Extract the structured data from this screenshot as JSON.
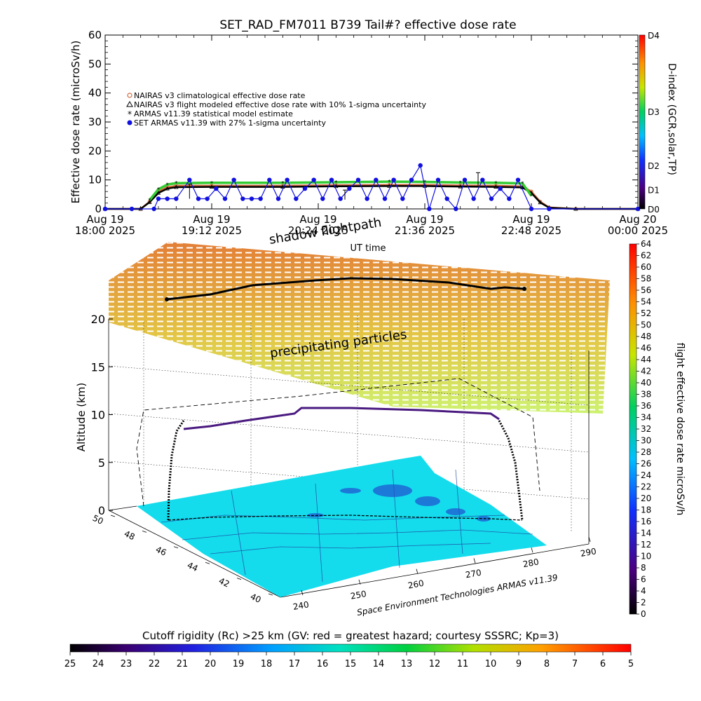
{
  "top_chart": {
    "title": "SET_RAD_FM7011   B739 Tail#? effective dose rate",
    "ylabel": "Effective dose rate (microSv/h)",
    "xlabel": "UT time",
    "legend": [
      {
        "label": "NAIRAS v3 climatological effective dose rate",
        "color": "#d2693c"
      },
      {
        "label": "NAIRAS v3 flight modeled effective dose rate with 10% 1-sigma uncertainty",
        "color": "#000000"
      },
      {
        "label": "ARMAS v11.39 statistical model estimate",
        "color": "#33cc33"
      },
      {
        "label": "SET ARMAS v11.39 with 27% 1-sigma uncertainty",
        "color": "#1010e0"
      }
    ],
    "right_colorbar": {
      "title": "D-index (GCR,solar,TP)",
      "labels": [
        {
          "text": "D4",
          "v": 1.0
        },
        {
          "text": "D3",
          "v": 0.56
        },
        {
          "text": "D2",
          "v": 0.25
        },
        {
          "text": "D1",
          "v": 0.11
        },
        {
          "text": "D0",
          "v": 0.0
        }
      ]
    }
  },
  "chart_data": [
    {
      "type": "scatter",
      "title": "SET_RAD_FM7011   B739 Tail#? effective dose rate",
      "xlabel": "UT time",
      "ylabel": "Effective dose rate (microSv/h)",
      "x_unit": "hours UT on Aug 19 2025",
      "xlim": [
        18.0,
        24.0
      ],
      "ylim": [
        0,
        60
      ],
      "x_ticks": [
        {
          "x": 18.0,
          "line1": "Aug 19",
          "line2": "18:00 2025"
        },
        {
          "x": 19.2,
          "line1": "Aug 19",
          "line2": "19:12 2025"
        },
        {
          "x": 20.4,
          "line1": "Aug 19",
          "line2": "20:24 2025"
        },
        {
          "x": 21.6,
          "line1": "Aug 19",
          "line2": "21:36 2025"
        },
        {
          "x": 22.8,
          "line1": "Aug 19",
          "line2": "22:48 2025"
        },
        {
          "x": 24.0,
          "line1": "Aug 20",
          "line2": "00:00 2025"
        }
      ],
      "y_ticks": [
        0,
        10,
        20,
        30,
        40,
        50,
        60
      ],
      "series": [
        {
          "name": "NAIRAS v3 climatological effective dose rate",
          "color": "#d2693c",
          "x": [
            18.0,
            18.4,
            18.5,
            18.6,
            18.7,
            18.8,
            19.2,
            20.0,
            20.6,
            21.2,
            21.6,
            22.0,
            22.4,
            22.7,
            22.8,
            22.9,
            23.0,
            23.3,
            24.0
          ],
          "y": [
            0,
            0,
            2.5,
            6.0,
            7.5,
            8.0,
            8.0,
            8.0,
            8.2,
            8.3,
            8.3,
            8.1,
            8.0,
            7.8,
            6.0,
            2.5,
            0.5,
            0,
            0
          ]
        },
        {
          "name": "NAIRAS v3 flight modeled effective dose rate with 10% 1-sigma uncertainty",
          "color": "#000000",
          "x": [
            18.0,
            18.4,
            18.5,
            18.6,
            18.7,
            18.8,
            19.2,
            20.0,
            20.6,
            21.2,
            21.6,
            22.0,
            22.4,
            22.7,
            22.8,
            22.9,
            23.0,
            23.3,
            24.0
          ],
          "y": [
            0,
            0,
            2.3,
            5.5,
            7.0,
            7.5,
            7.6,
            7.6,
            7.8,
            7.9,
            7.9,
            7.7,
            7.6,
            7.4,
            5.5,
            2.2,
            0.4,
            0,
            0
          ]
        },
        {
          "name": "ARMAS v11.39 statistical model estimate",
          "color": "#33cc33",
          "x": [
            18.5,
            18.6,
            18.7,
            18.8,
            19.2,
            20.0,
            20.6,
            21.2,
            21.6,
            22.0,
            22.4,
            22.7,
            22.8
          ],
          "y": [
            3.0,
            6.8,
            8.4,
            8.9,
            9.0,
            9.0,
            9.2,
            9.4,
            9.3,
            9.1,
            9.0,
            8.8,
            4.5
          ]
        },
        {
          "name": "SET ARMAS v11.39 with 27% 1-sigma uncertainty",
          "color": "#1010e0",
          "x": [
            18.0,
            18.3,
            18.55,
            18.6,
            18.7,
            18.8,
            18.95,
            19.05,
            19.15,
            19.25,
            19.35,
            19.45,
            19.55,
            19.65,
            19.75,
            19.85,
            19.95,
            20.05,
            20.15,
            20.25,
            20.35,
            20.45,
            20.55,
            20.65,
            20.75,
            20.85,
            20.95,
            21.05,
            21.15,
            21.25,
            21.35,
            21.45,
            21.55,
            21.65,
            21.75,
            21.85,
            21.95,
            22.05,
            22.15,
            22.25,
            22.35,
            22.45,
            22.55,
            22.65,
            22.8,
            23.0,
            24.0
          ],
          "y": [
            0,
            0,
            0,
            3.5,
            3.5,
            3.5,
            10,
            3.5,
            3.5,
            7,
            3.5,
            10,
            3.5,
            3.5,
            3.5,
            10,
            3.5,
            10,
            3.5,
            7,
            10,
            3.5,
            10,
            3.5,
            7,
            10,
            3.5,
            10,
            3.5,
            10,
            3.5,
            10,
            15,
            0,
            10,
            3.5,
            0,
            10,
            3.5,
            10,
            3.5,
            7,
            3.5,
            10,
            0,
            0,
            0
          ]
        }
      ]
    },
    {
      "type": "scatter",
      "xlabel": "",
      "ylabel": "Altitude (km)",
      "zlim": [
        0,
        20
      ],
      "z_ticks": [
        0,
        5,
        10,
        15,
        20
      ],
      "lon_ticks": [
        240,
        250,
        260,
        270,
        280,
        290
      ],
      "lat_ticks": [
        40,
        42,
        44,
        46,
        48,
        50
      ],
      "series": [
        {
          "name": "flightpath",
          "unit": "km",
          "x": [
            0,
            0.05,
            0.12,
            0.2,
            0.3,
            0.4,
            0.5,
            0.6,
            0.7,
            0.8,
            0.88,
            0.95,
            1.0
          ],
          "y": [
            0,
            4,
            8.5,
            9.0,
            9.5,
            10.0,
            10.5,
            11.0,
            11.0,
            10.5,
            10.0,
            5,
            0
          ]
        }
      ]
    }
  ],
  "plot3d": {
    "annotation_shadow": "shadow flightpath",
    "annotation_particles": "precipitating particles",
    "credit": "Space Environment Technologies ARMAS v11.39",
    "right_colorbar": {
      "title": "flight effective dose rate microSv/h",
      "ticks": [
        0,
        2,
        4,
        6,
        8,
        10,
        12,
        14,
        16,
        18,
        20,
        22,
        24,
        26,
        28,
        30,
        32,
        34,
        36,
        38,
        40,
        42,
        44,
        46,
        48,
        50,
        52,
        54,
        56,
        58,
        60,
        62,
        64
      ]
    }
  },
  "bottom_colorbar": {
    "title": "Cutoff rigidity (Rc) >25 km (GV: red = greatest hazard; courtesy SSSRC; Kp=3)",
    "ticks": [
      25,
      24,
      23,
      22,
      21,
      20,
      19,
      18,
      17,
      16,
      15,
      14,
      13,
      12,
      11,
      10,
      9,
      8,
      7,
      6,
      5
    ]
  }
}
